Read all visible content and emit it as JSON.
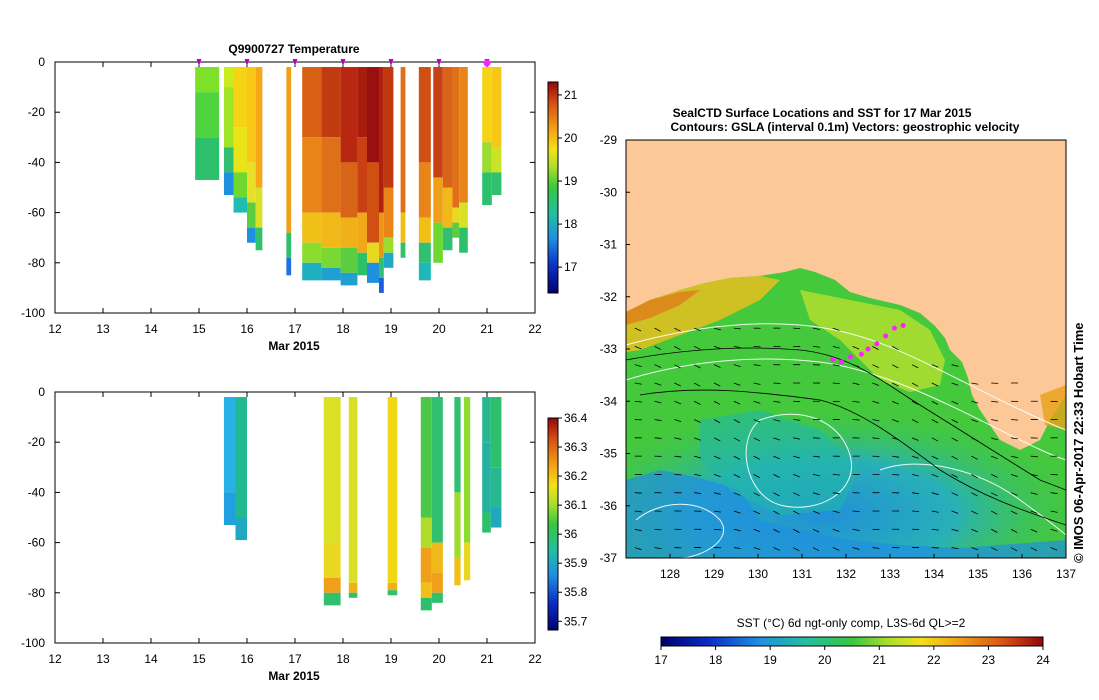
{
  "chart_data": [
    {
      "type": "heatmap",
      "title": "Q9900727  Temperature",
      "xlabel": "Mar 2015",
      "ylabel": "",
      "xlim": [
        12,
        22
      ],
      "ylim": [
        -100,
        0
      ],
      "x_ticks": [
        12,
        13,
        14,
        15,
        16,
        17,
        18,
        19,
        20,
        21,
        22
      ],
      "y_ticks": [
        0,
        -20,
        -40,
        -60,
        -80,
        -100
      ],
      "colorbar": {
        "min": 16.4,
        "max": 21.3,
        "ticks": [
          17,
          18,
          19,
          20,
          21
        ]
      },
      "marker_days": [
        15,
        16,
        17,
        18,
        19,
        20,
        21
      ],
      "highlight_day": 21,
      "profiles": [
        {
          "t0": 14.92,
          "t1": 15.42,
          "bottom": -47,
          "colors": [
            [
              -2,
              "#7fe02a"
            ],
            [
              -12,
              "#4fd440"
            ],
            [
              -30,
              "#2cc06a"
            ]
          ]
        },
        {
          "t0": 15.52,
          "t1": 15.72,
          "bottom": -53,
          "colors": [
            [
              -2,
              "#c8ec1c"
            ],
            [
              -10,
              "#a0e428"
            ],
            [
              -34,
              "#30c070"
            ],
            [
              -44,
              "#1f8fe0"
            ]
          ]
        },
        {
          "t0": 15.72,
          "t1": 16.0,
          "bottom": -60,
          "colors": [
            [
              -2,
              "#f4d414"
            ],
            [
              -26,
              "#e8e418"
            ],
            [
              -44,
              "#6cd830"
            ],
            [
              -54,
              "#1fbcb0"
            ]
          ]
        },
        {
          "t0": 16.0,
          "t1": 16.18,
          "bottom": -72,
          "colors": [
            [
              -2,
              "#f8c818"
            ],
            [
              -40,
              "#e8e028"
            ],
            [
              -56,
              "#5ccc40"
            ],
            [
              -66,
              "#1f90e0"
            ]
          ]
        },
        {
          "t0": 16.18,
          "t1": 16.32,
          "bottom": -75,
          "colors": [
            [
              -2,
              "#f6a818"
            ],
            [
              -50,
              "#d8e028"
            ],
            [
              -66,
              "#30c070"
            ]
          ]
        },
        {
          "t0": 16.82,
          "t1": 16.92,
          "bottom": -85,
          "colors": [
            [
              -2,
              "#f0a018"
            ],
            [
              -68,
              "#2cc06a"
            ],
            [
              -78,
              "#1f70e0"
            ]
          ]
        },
        {
          "t0": 17.15,
          "t1": 17.55,
          "bottom": -87,
          "colors": [
            [
              -2,
              "#d86014"
            ],
            [
              -30,
              "#e88418"
            ],
            [
              -60,
              "#f0c018"
            ],
            [
              -72,
              "#8cdc30"
            ],
            [
              -80,
              "#1fb0c0"
            ]
          ]
        },
        {
          "t0": 17.55,
          "t1": 17.95,
          "bottom": -87,
          "colors": [
            [
              -2,
              "#c03c10"
            ],
            [
              -30,
              "#e07018"
            ],
            [
              -60,
              "#f0b818"
            ],
            [
              -74,
              "#78d834"
            ],
            [
              -82,
              "#1fa0d0"
            ]
          ]
        },
        {
          "t0": 17.95,
          "t1": 18.3,
          "bottom": -89,
          "colors": [
            [
              -2,
              "#b82810"
            ],
            [
              -40,
              "#d86418"
            ],
            [
              -62,
              "#f0b018"
            ],
            [
              -74,
              "#5ccc40"
            ],
            [
              -84,
              "#1fa0d0"
            ]
          ]
        },
        {
          "t0": 18.3,
          "t1": 18.5,
          "bottom": -85,
          "colors": [
            [
              -2,
              "#a81c10"
            ],
            [
              -30,
              "#c84014"
            ],
            [
              -60,
              "#f0a818"
            ],
            [
              -76,
              "#2cc06a"
            ]
          ]
        },
        {
          "t0": 18.5,
          "t1": 18.75,
          "bottom": -88,
          "colors": [
            [
              -2,
              "#981010"
            ],
            [
              -40,
              "#d05014"
            ],
            [
              -72,
              "#e8d820"
            ],
            [
              -80,
              "#1f90e0"
            ]
          ]
        },
        {
          "t0": 18.75,
          "t1": 18.85,
          "bottom": -92,
          "colors": [
            [
              -2,
              "#b02010"
            ],
            [
              -60,
              "#e89818"
            ],
            [
              -78,
              "#30c070"
            ],
            [
              -86,
              "#1f5ce0"
            ]
          ]
        },
        {
          "t0": 18.85,
          "t1": 19.05,
          "bottom": -82,
          "colors": [
            [
              -2,
              "#c03810"
            ],
            [
              -50,
              "#e88418"
            ],
            [
              -70,
              "#9cdc30"
            ],
            [
              -76,
              "#1fa8c8"
            ]
          ]
        },
        {
          "t0": 19.2,
          "t1": 19.3,
          "bottom": -78,
          "colors": [
            [
              -2,
              "#e07018"
            ],
            [
              -60,
              "#f0c018"
            ],
            [
              -72,
              "#30c070"
            ]
          ]
        },
        {
          "t0": 19.58,
          "t1": 19.83,
          "bottom": -87,
          "colors": [
            [
              -2,
              "#d05014"
            ],
            [
              -40,
              "#e88418"
            ],
            [
              -62,
              "#f0c018"
            ],
            [
              -72,
              "#30c070"
            ],
            [
              -80,
              "#1fb8b8"
            ]
          ]
        },
        {
          "t0": 19.88,
          "t1": 20.08,
          "bottom": -80,
          "colors": [
            [
              -2,
              "#c84014"
            ],
            [
              -46,
              "#f0a018"
            ],
            [
              -64,
              "#6cd830"
            ]
          ]
        },
        {
          "t0": 20.08,
          "t1": 20.28,
          "bottom": -75,
          "colors": [
            [
              -2,
              "#d86418"
            ],
            [
              -50,
              "#f0b818"
            ],
            [
              -66,
              "#30c070"
            ]
          ]
        },
        {
          "t0": 20.28,
          "t1": 20.42,
          "bottom": -70,
          "colors": [
            [
              -2,
              "#e07018"
            ],
            [
              -58,
              "#e8d820"
            ],
            [
              -64,
              "#5ccc40"
            ]
          ]
        },
        {
          "t0": 20.42,
          "t1": 20.6,
          "bottom": -76,
          "colors": [
            [
              -2,
              "#e88418"
            ],
            [
              -56,
              "#d8e028"
            ],
            [
              -66,
              "#2cc06a"
            ]
          ]
        },
        {
          "t0": 20.9,
          "t1": 21.1,
          "bottom": -57,
          "colors": [
            [
              -2,
              "#f4d414"
            ],
            [
              -32,
              "#9cdc30"
            ],
            [
              -44,
              "#2cc06a"
            ]
          ]
        },
        {
          "t0": 21.1,
          "t1": 21.3,
          "bottom": -53,
          "colors": [
            [
              -2,
              "#f8c818"
            ],
            [
              -34,
              "#c8e424"
            ],
            [
              -44,
              "#30c070"
            ]
          ]
        }
      ]
    },
    {
      "type": "heatmap",
      "title": "",
      "xlabel": "Mar 2015",
      "ylabel": "",
      "xlim": [
        12,
        22
      ],
      "ylim": [
        -100,
        0
      ],
      "x_ticks": [
        12,
        13,
        14,
        15,
        16,
        17,
        18,
        19,
        20,
        21,
        22
      ],
      "y_ticks": [
        0,
        -20,
        -40,
        -60,
        -80,
        -100
      ],
      "colorbar": {
        "min": 35.67,
        "max": 36.4,
        "ticks": [
          36.4,
          36.3,
          36.2,
          36.1,
          36,
          35.9,
          35.8,
          35.7
        ]
      },
      "profiles": [
        {
          "t0": 15.52,
          "t1": 15.76,
          "bottom": -53,
          "colors": [
            [
              -2,
              "#28b0e8"
            ],
            [
              -40,
              "#20a0e0"
            ]
          ]
        },
        {
          "t0": 15.76,
          "t1": 16.0,
          "bottom": -59,
          "colors": [
            [
              -2,
              "#22b890"
            ],
            [
              -50,
              "#20a8c0"
            ]
          ]
        },
        {
          "t0": 17.6,
          "t1": 17.95,
          "bottom": -85,
          "colors": [
            [
              -2,
              "#dce024"
            ],
            [
              -60,
              "#e8d820"
            ],
            [
              -74,
              "#f0a018"
            ],
            [
              -80,
              "#30c070"
            ]
          ]
        },
        {
          "t0": 18.12,
          "t1": 18.3,
          "bottom": -82,
          "colors": [
            [
              -2,
              "#d8e024"
            ],
            [
              -76,
              "#f0b018"
            ],
            [
              -80,
              "#30c070"
            ]
          ]
        },
        {
          "t0": 18.93,
          "t1": 19.13,
          "bottom": -81,
          "colors": [
            [
              -2,
              "#f0d814"
            ],
            [
              -76,
              "#f0b018"
            ],
            [
              -79,
              "#30c070"
            ]
          ]
        },
        {
          "t0": 19.62,
          "t1": 19.85,
          "bottom": -87,
          "colors": [
            [
              -2,
              "#4cc848"
            ],
            [
              -50,
              "#b0dc28"
            ],
            [
              -62,
              "#f0a018"
            ],
            [
              -76,
              "#f0c018"
            ],
            [
              -82,
              "#2cc06a"
            ]
          ]
        },
        {
          "t0": 19.85,
          "t1": 20.08,
          "bottom": -84,
          "colors": [
            [
              -2,
              "#30c070"
            ],
            [
              -60,
              "#f0b818"
            ],
            [
              -72,
              "#f0a018"
            ],
            [
              -80,
              "#30c070"
            ]
          ]
        },
        {
          "t0": 20.32,
          "t1": 20.45,
          "bottom": -77,
          "colors": [
            [
              -2,
              "#30c070"
            ],
            [
              -40,
              "#9cdc30"
            ],
            [
              -66,
              "#f0c018"
            ]
          ]
        },
        {
          "t0": 20.52,
          "t1": 20.65,
          "bottom": -75,
          "colors": [
            [
              -2,
              "#8cdc30"
            ],
            [
              -60,
              "#e8d820"
            ]
          ]
        },
        {
          "t0": 20.9,
          "t1": 21.08,
          "bottom": -56,
          "colors": [
            [
              -2,
              "#28b890"
            ],
            [
              -20,
              "#22b2a0"
            ],
            [
              -48,
              "#2cc06a"
            ]
          ]
        },
        {
          "t0": 21.08,
          "t1": 21.3,
          "bottom": -54,
          "colors": [
            [
              -2,
              "#2cc06a"
            ],
            [
              -30,
              "#28b890"
            ],
            [
              -46,
              "#20a8c0"
            ]
          ]
        }
      ]
    },
    {
      "type": "heatmap",
      "title": "SealCTD Surface Locations and SST for 17 Mar 2015",
      "subtitle": "Contours: GSLA (interval 0.1m) Vectors: geostrophic velocity",
      "xlabel": "",
      "ylabel": "",
      "xlim": [
        127,
        137
      ],
      "ylim": [
        -37,
        -29
      ],
      "x_ticks": [
        128,
        129,
        130,
        131,
        132,
        133,
        134,
        135,
        136,
        137
      ],
      "y_ticks": [
        -29,
        -30,
        -31,
        -32,
        -33,
        -34,
        -35,
        -36,
        -37
      ],
      "colorbar": {
        "label": "SST (°C) 6d ngt-only comp, L3S-6d QL>=2",
        "min": 17,
        "max": 24,
        "ticks": [
          17,
          18,
          19,
          20,
          21,
          22,
          23,
          24
        ]
      },
      "seal_locations": [
        [
          131.7,
          -33.2
        ],
        [
          131.9,
          -33.25
        ],
        [
          132.1,
          -33.15
        ],
        [
          132.35,
          -33.1
        ],
        [
          132.5,
          -33.0
        ],
        [
          132.7,
          -32.9
        ],
        [
          132.9,
          -32.75
        ],
        [
          133.1,
          -32.6
        ],
        [
          133.3,
          -32.55
        ]
      ],
      "credit": "© IMOS 06-Apr-2017 22:33 Hobart Time"
    }
  ]
}
